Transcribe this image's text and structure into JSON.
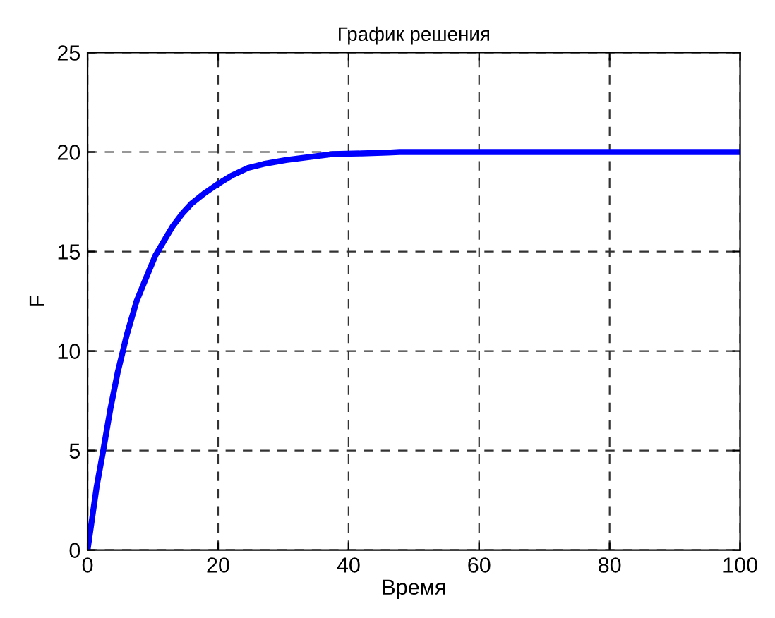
{
  "chart_data": {
    "type": "line",
    "title": "График решения",
    "xlabel": "Время",
    "ylabel": "F",
    "x": [
      0,
      0.7,
      1.4,
      2.4,
      3.5,
      4.6,
      6,
      7.5,
      9,
      10.4,
      12,
      13,
      14.5,
      15.9,
      18,
      20,
      22,
      24.6,
      27,
      30.4,
      34,
      37.6,
      42,
      46,
      47.8,
      60,
      80,
      100
    ],
    "series": [
      {
        "color": "#0000ff",
        "values": [
          0,
          1.6,
          3.2,
          5,
          7.1,
          8.9,
          10.8,
          12.5,
          13.7,
          14.8,
          15.7,
          16.25,
          16.9,
          17.4,
          17.95,
          18.4,
          18.8,
          19.2,
          19.4,
          19.6,
          19.75,
          19.9,
          19.93,
          19.97,
          20,
          20,
          20,
          20
        ]
      }
    ],
    "xlim": [
      0,
      100
    ],
    "ylim": [
      0,
      25
    ],
    "xticks": [
      0,
      20,
      40,
      60,
      80,
      100
    ],
    "yticks": [
      0,
      5,
      10,
      15,
      20,
      25
    ],
    "grid": true,
    "line_style": "solid",
    "marker": "none"
  }
}
